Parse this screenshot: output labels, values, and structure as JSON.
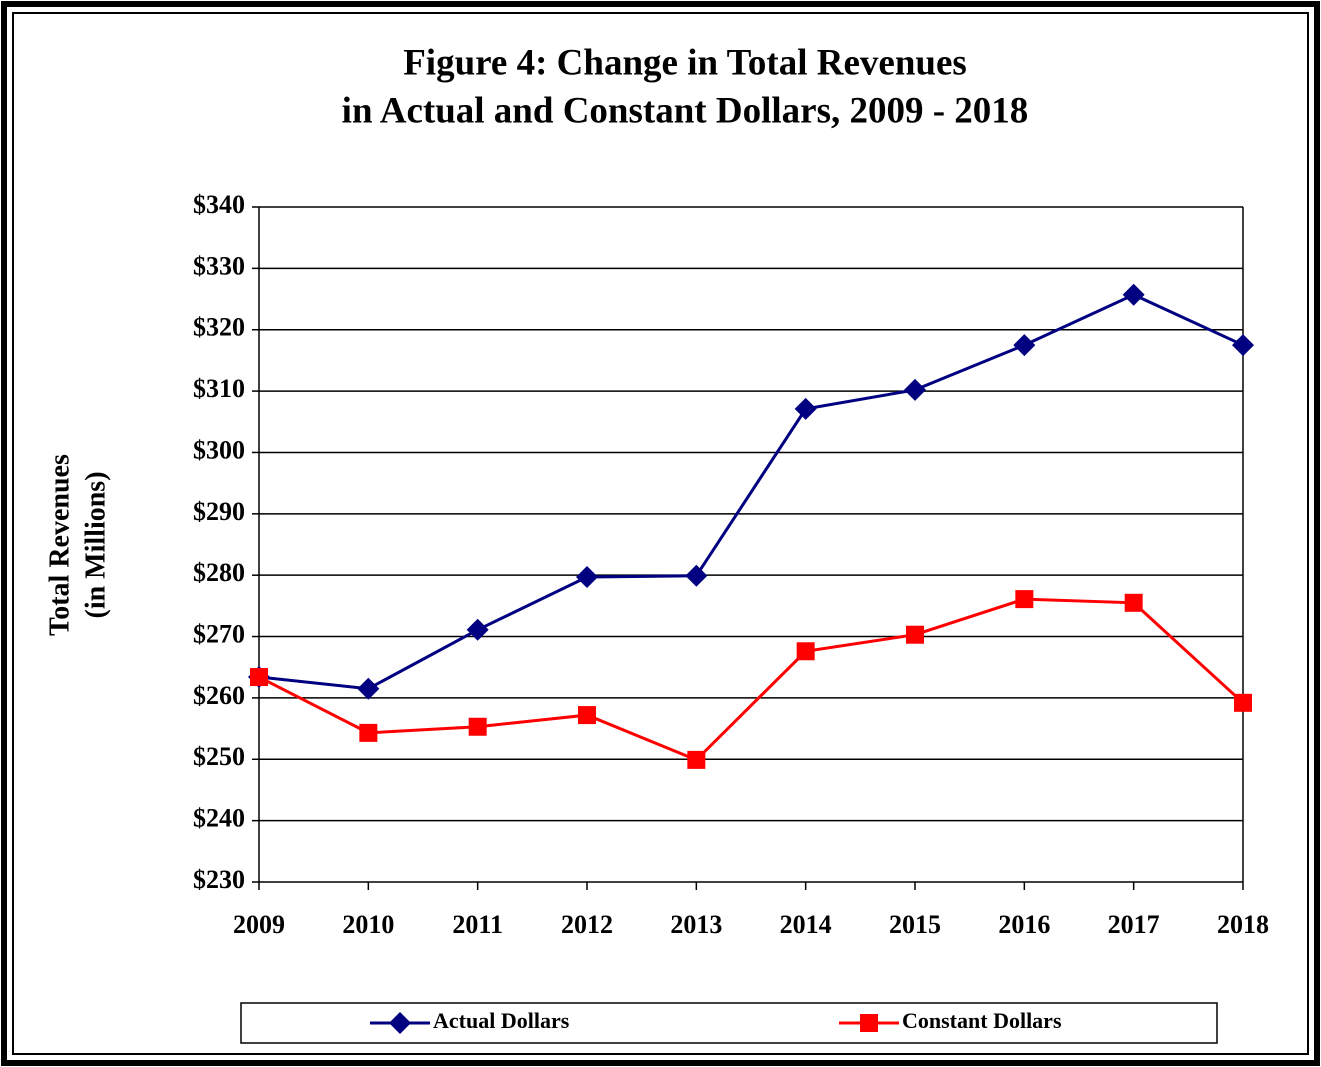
{
  "chart_data": {
    "type": "line",
    "title": [
      "Figure 4:  Change in Total Revenues",
      "in Actual and Constant Dollars, 2009 - 2018"
    ],
    "y_label": [
      "Total Revenues",
      "(in Millions)"
    ],
    "categories": [
      "2009",
      "2010",
      "2011",
      "2012",
      "2013",
      "2014",
      "2015",
      "2016",
      "2017",
      "2018"
    ],
    "series": [
      {
        "name": "Actual Dollars",
        "color": "#000080",
        "marker": "diamond",
        "values": [
          263.4,
          261.5,
          271.1,
          279.7,
          279.9,
          307.1,
          310.2,
          317.5,
          325.7,
          317.5
        ]
      },
      {
        "name": "Constant Dollars",
        "color": "#ff0000",
        "marker": "square",
        "values": [
          263.4,
          254.3,
          255.3,
          257.2,
          249.9,
          267.6,
          270.3,
          276.1,
          275.5,
          259.2
        ]
      }
    ],
    "ylim": [
      230,
      340
    ],
    "yticks": [
      {
        "value": 230,
        "label": "$230"
      },
      {
        "value": 240,
        "label": "$240"
      },
      {
        "value": 250,
        "label": "$250"
      },
      {
        "value": 260,
        "label": "$260"
      },
      {
        "value": 270,
        "label": "$270"
      },
      {
        "value": 280,
        "label": "$280"
      },
      {
        "value": 290,
        "label": "$290"
      },
      {
        "value": 300,
        "label": "$300"
      },
      {
        "value": 310,
        "label": "$310"
      },
      {
        "value": 320,
        "label": "$320"
      },
      {
        "value": 330,
        "label": "$330"
      },
      {
        "value": 340,
        "label": "$340"
      }
    ],
    "grid": true,
    "legend": "bottom"
  }
}
